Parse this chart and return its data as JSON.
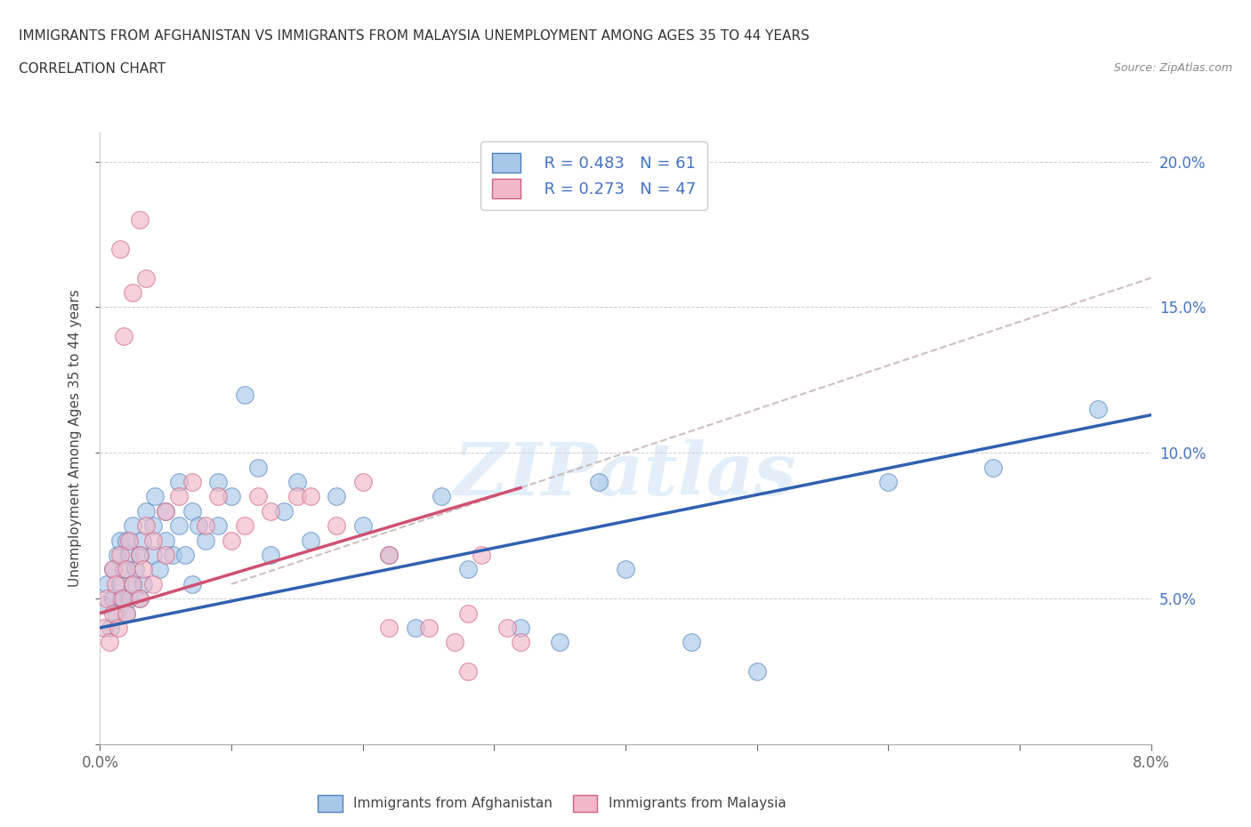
{
  "title_line1": "IMMIGRANTS FROM AFGHANISTAN VS IMMIGRANTS FROM MALAYSIA UNEMPLOYMENT AMONG AGES 35 TO 44 YEARS",
  "title_line2": "CORRELATION CHART",
  "source": "Source: ZipAtlas.com",
  "ylabel": "Unemployment Among Ages 35 to 44 years",
  "xlim": [
    0.0,
    0.08
  ],
  "ylim": [
    0.0,
    0.21
  ],
  "xtick_vals": [
    0.0,
    0.01,
    0.02,
    0.03,
    0.04,
    0.05,
    0.06,
    0.07,
    0.08
  ],
  "ytick_vals": [
    0.0,
    0.05,
    0.1,
    0.15,
    0.2
  ],
  "xtick_labels": [
    "0.0%",
    "",
    "",
    "",
    "",
    "",
    "",
    "",
    "8.0%"
  ],
  "ytick_labels_right": [
    "",
    "5.0%",
    "10.0%",
    "15.0%",
    "20.0%"
  ],
  "color_af": "#a8c8e8",
  "color_my": "#f0b8c8",
  "edge_af": "#5080c0",
  "edge_my": "#d06080",
  "line_af": "#3060b0",
  "line_my": "#d05070",
  "line_dash": "#c8b8b8",
  "watermark": "ZIPatlas",
  "legend_R_af": "R = 0.483",
  "legend_N_af": "N = 61",
  "legend_R_my": "R = 0.273",
  "legend_N_my": "N = 47",
  "af_x": [
    0.0003,
    0.0005,
    0.0008,
    0.001,
    0.001,
    0.0012,
    0.0013,
    0.0015,
    0.0015,
    0.0016,
    0.0018,
    0.002,
    0.002,
    0.0022,
    0.0023,
    0.0025,
    0.0025,
    0.0027,
    0.003,
    0.003,
    0.0032,
    0.0033,
    0.0035,
    0.004,
    0.004,
    0.0042,
    0.0045,
    0.005,
    0.005,
    0.0055,
    0.006,
    0.006,
    0.0065,
    0.007,
    0.007,
    0.0075,
    0.008,
    0.009,
    0.009,
    0.01,
    0.011,
    0.012,
    0.013,
    0.014,
    0.015,
    0.016,
    0.018,
    0.02,
    0.022,
    0.024,
    0.026,
    0.028,
    0.032,
    0.035,
    0.038,
    0.04,
    0.045,
    0.05,
    0.06,
    0.068,
    0.076
  ],
  "af_y": [
    0.048,
    0.055,
    0.04,
    0.06,
    0.05,
    0.045,
    0.065,
    0.055,
    0.07,
    0.05,
    0.06,
    0.045,
    0.07,
    0.065,
    0.05,
    0.055,
    0.075,
    0.06,
    0.05,
    0.065,
    0.07,
    0.055,
    0.08,
    0.065,
    0.075,
    0.085,
    0.06,
    0.07,
    0.08,
    0.065,
    0.09,
    0.075,
    0.065,
    0.08,
    0.055,
    0.075,
    0.07,
    0.09,
    0.075,
    0.085,
    0.12,
    0.095,
    0.065,
    0.08,
    0.09,
    0.07,
    0.085,
    0.075,
    0.065,
    0.04,
    0.085,
    0.06,
    0.04,
    0.035,
    0.09,
    0.06,
    0.035,
    0.025,
    0.09,
    0.095,
    0.115
  ],
  "my_x": [
    0.0003,
    0.0005,
    0.0007,
    0.001,
    0.001,
    0.0012,
    0.0014,
    0.0015,
    0.0017,
    0.002,
    0.002,
    0.0022,
    0.0025,
    0.003,
    0.003,
    0.0033,
    0.0035,
    0.004,
    0.004,
    0.005,
    0.005,
    0.006,
    0.007,
    0.008,
    0.009,
    0.01,
    0.011,
    0.012,
    0.013,
    0.015,
    0.016,
    0.018,
    0.02,
    0.022,
    0.025,
    0.027,
    0.028,
    0.029,
    0.031,
    0.032,
    0.0015,
    0.0018,
    0.0025,
    0.003,
    0.0035,
    0.022,
    0.028
  ],
  "my_y": [
    0.04,
    0.05,
    0.035,
    0.045,
    0.06,
    0.055,
    0.04,
    0.065,
    0.05,
    0.045,
    0.06,
    0.07,
    0.055,
    0.05,
    0.065,
    0.06,
    0.075,
    0.055,
    0.07,
    0.065,
    0.08,
    0.085,
    0.09,
    0.075,
    0.085,
    0.07,
    0.075,
    0.085,
    0.08,
    0.085,
    0.085,
    0.075,
    0.09,
    0.065,
    0.04,
    0.035,
    0.045,
    0.065,
    0.04,
    0.035,
    0.17,
    0.14,
    0.155,
    0.18,
    0.16,
    0.04,
    0.025
  ],
  "af_line_x0": 0.0,
  "af_line_y0": 0.04,
  "af_line_x1": 0.08,
  "af_line_y1": 0.113,
  "my_line_x0": 0.0,
  "my_line_y0": 0.045,
  "my_line_x1": 0.032,
  "my_line_y1": 0.088,
  "dash_line_x0": 0.01,
  "dash_line_y0": 0.055,
  "dash_line_x1": 0.08,
  "dash_line_y1": 0.16
}
